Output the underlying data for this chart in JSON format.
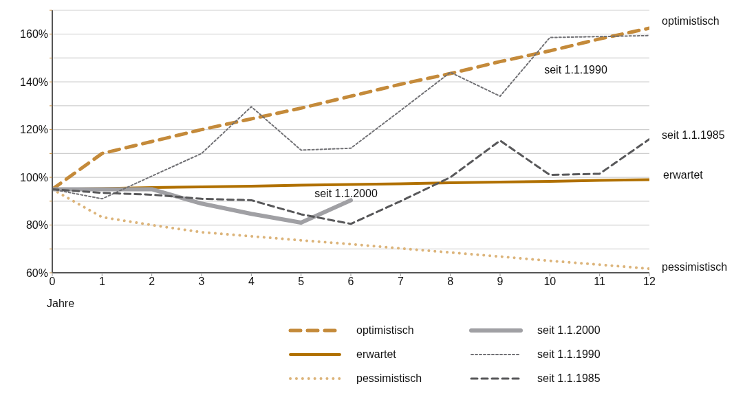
{
  "chart_data": {
    "type": "line",
    "xlabel": "Jahre",
    "x": [
      0,
      1,
      2,
      3,
      4,
      5,
      6,
      7,
      8,
      9,
      10,
      11,
      12
    ],
    "xlim": [
      0,
      12
    ],
    "xticks": [
      0,
      1,
      2,
      3,
      4,
      5,
      6,
      7,
      8,
      9,
      10,
      11,
      12
    ],
    "ylim": [
      60,
      170
    ],
    "yticks": [
      {
        "value": 60,
        "label": "60%"
      },
      {
        "value": 70,
        "label": null
      },
      {
        "value": 80,
        "label": "80%"
      },
      {
        "value": 90,
        "label": null
      },
      {
        "value": 100,
        "label": "100%"
      },
      {
        "value": 110,
        "label": null
      },
      {
        "value": 120,
        "label": "120%"
      },
      {
        "value": 130,
        "label": null
      },
      {
        "value": 140,
        "label": "140%"
      },
      {
        "value": 150,
        "label": null
      },
      {
        "value": 160,
        "label": "160%"
      },
      {
        "value": 170,
        "label": null
      }
    ],
    "grid": "y",
    "legend": "bottom",
    "marker": "none",
    "series": [
      {
        "name": "optimistisch",
        "color": "#c48a3a",
        "line_style": "dashed",
        "values": [
          95,
          110,
          115,
          120,
          124.5,
          129,
          134,
          139,
          143.5,
          148.5,
          153,
          158,
          162.5
        ]
      },
      {
        "name": "erwartet",
        "color": "#b07000",
        "line_style": "solid",
        "values": [
          95,
          95.3,
          95.7,
          96,
          96.3,
          96.7,
          97,
          97.3,
          97.7,
          98,
          98.3,
          98.7,
          99
        ]
      },
      {
        "name": "pessimistisch",
        "color": "#dcb47a",
        "line_style": "dotted",
        "values": [
          95,
          83.3,
          80,
          77,
          75.3,
          73.6,
          72,
          70.2,
          68.5,
          66.8,
          65,
          63.4,
          61.7
        ]
      },
      {
        "name": "seit 1.1.2000",
        "color": "#a0a0a4",
        "line_style": "solid",
        "values": [
          95,
          95,
          95,
          89,
          84.7,
          81,
          90.4,
          null,
          null,
          null,
          null,
          null,
          null
        ]
      },
      {
        "name": "seit 1.1.1990",
        "color": "#707074",
        "line_style": "dotted",
        "values": [
          95,
          91,
          100.5,
          110,
          129.6,
          111.4,
          112.2,
          128,
          144,
          134,
          158.6,
          159,
          159.4
        ]
      },
      {
        "name": "seit 1.1.1985",
        "color": "#58585a",
        "line_style": "dashed",
        "values": [
          95,
          93.5,
          92.7,
          91,
          90.4,
          84.5,
          80.5,
          90,
          100,
          115.4,
          101,
          101.5,
          116
        ]
      }
    ]
  }
}
